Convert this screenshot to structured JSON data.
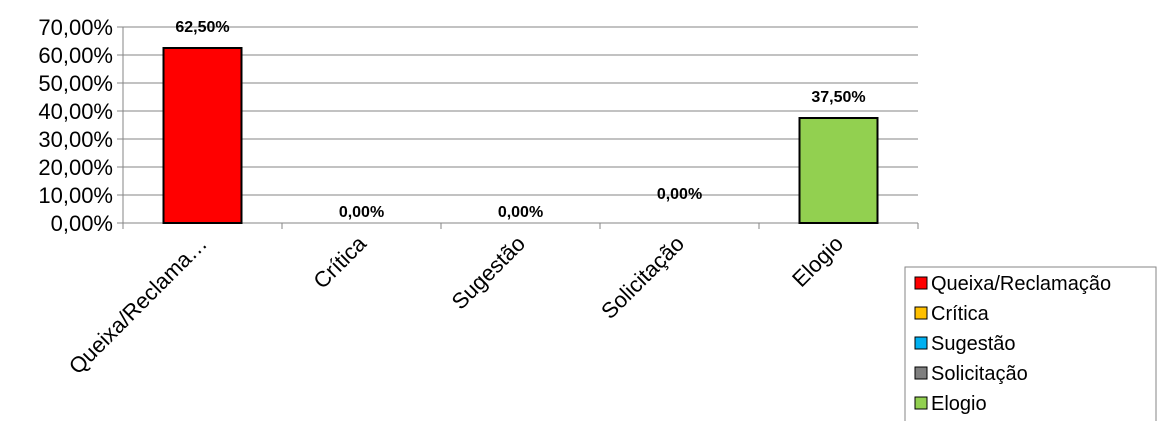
{
  "chart_data": {
    "type": "bar",
    "categories": [
      "Queixa/Reclama…",
      "Crítica",
      "Sugestão",
      "Solicitação",
      "Elogio"
    ],
    "values": [
      62.5,
      0,
      0,
      0,
      37.5
    ],
    "data_labels": [
      "62,50%",
      "0,00%",
      "0,00%",
      "0,00%",
      "37,50%"
    ],
    "colors": [
      "#ff0000",
      "#ffc000",
      "#00b0f0",
      "#7f7f7f",
      "#92d050"
    ],
    "ylim": [
      0,
      70
    ],
    "yticks": [
      {
        "value": 0,
        "label": "0,00%"
      },
      {
        "value": 10,
        "label": "10,00%"
      },
      {
        "value": 20,
        "label": "20,00%"
      },
      {
        "value": 30,
        "label": "30,00%"
      },
      {
        "value": 40,
        "label": "40,00%"
      },
      {
        "value": 50,
        "label": "50,00%"
      },
      {
        "value": 60,
        "label": "60,00%"
      },
      {
        "value": 70,
        "label": "70,00%"
      }
    ],
    "grid": true,
    "legend_position": "bottom-right",
    "legend": [
      {
        "label": "Queixa/Reclamação",
        "color": "#ff0000"
      },
      {
        "label": "Crítica",
        "color": "#ffc000"
      },
      {
        "label": "Sugestão",
        "color": "#00b0f0"
      },
      {
        "label": "Solicitação",
        "color": "#7f7f7f"
      },
      {
        "label": "Elogio",
        "color": "#92d050"
      }
    ],
    "title": "",
    "xlabel": "",
    "ylabel": ""
  }
}
